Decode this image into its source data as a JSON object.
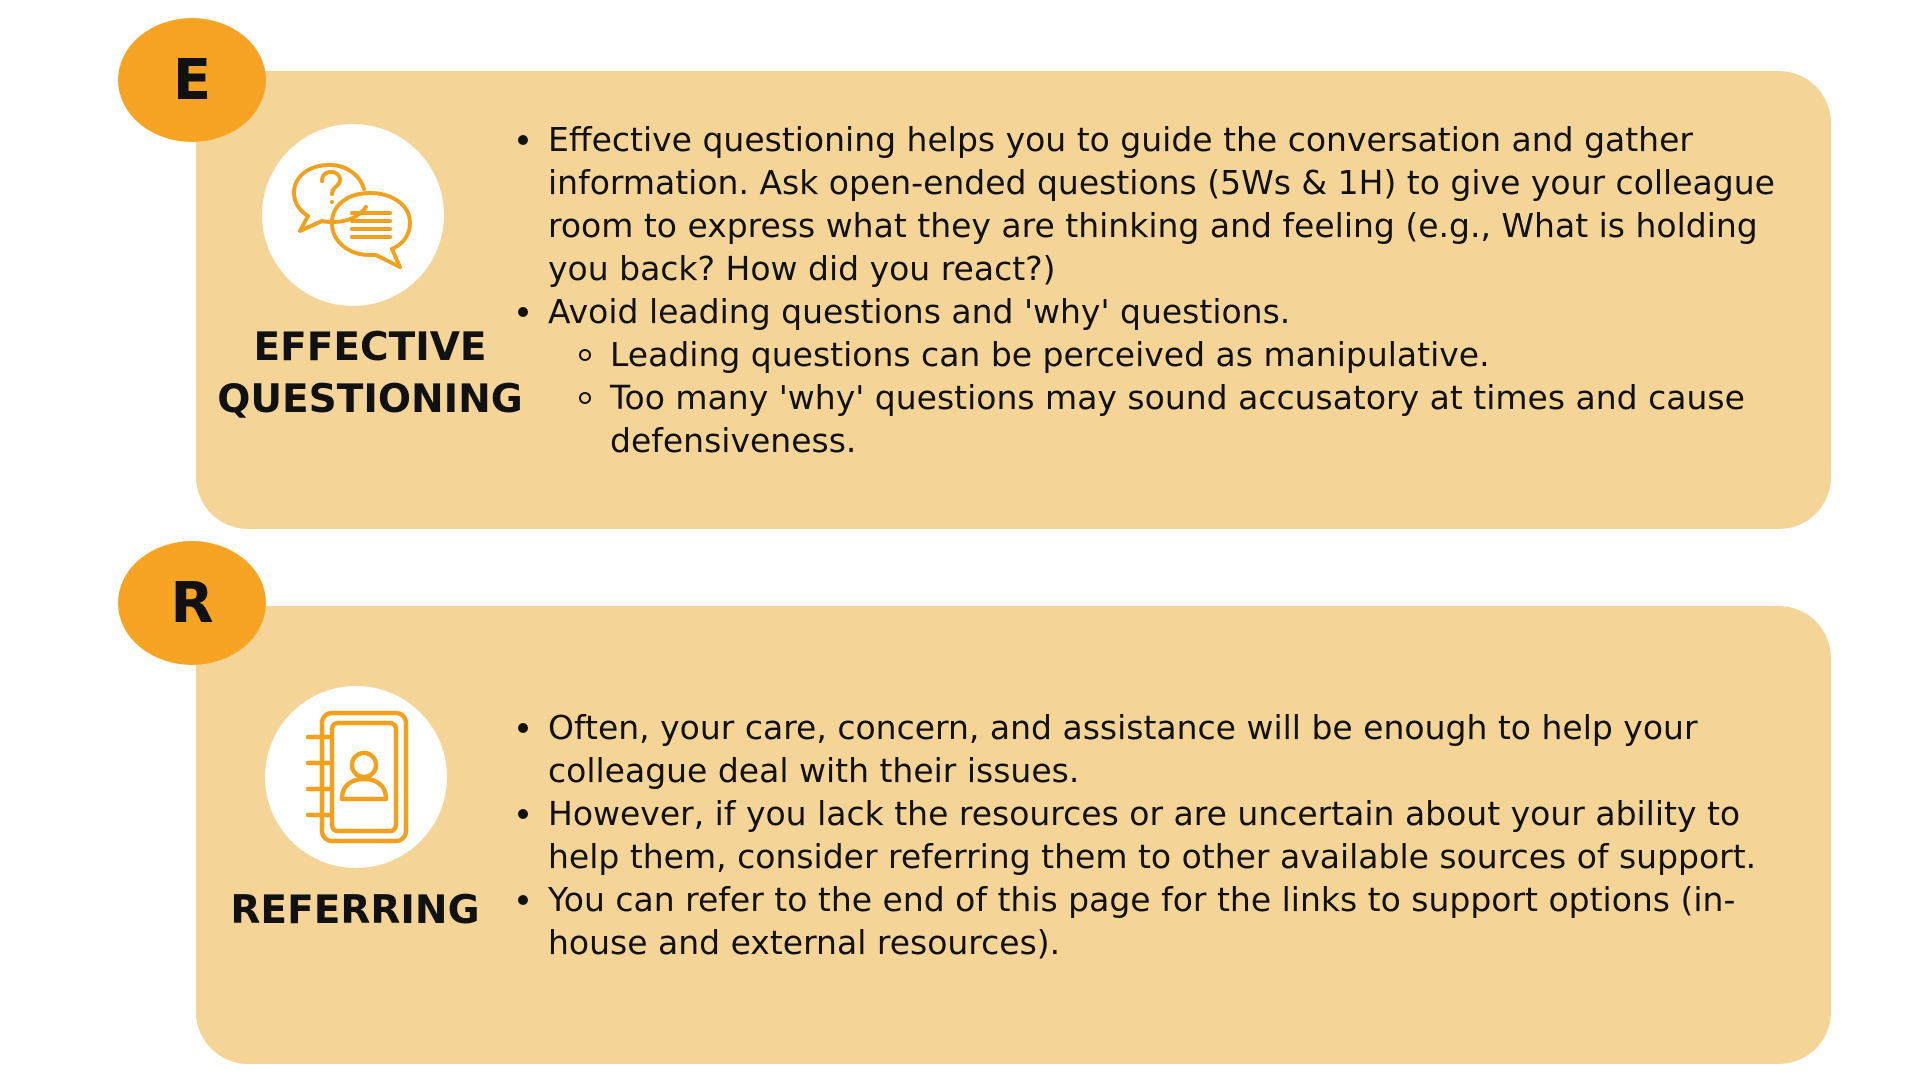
{
  "sections": [
    {
      "letter": "E",
      "title_line1": "EFFECTIVE",
      "title_line2": "QUESTIONING",
      "icon": "question-chat-bubbles-icon",
      "bullets": [
        "Effective questioning helps you to guide the conversation and gather information. Ask open-ended questions (5Ws & 1H) to give your colleague room to express what they are thinking and feeling (e.g., What is holding you back? How did you react?)",
        "Avoid leading questions and 'why' questions."
      ],
      "sub_bullets": [
        "Leading questions can be perceived as manipulative.",
        "Too many 'why' questions may sound accusatory at times and cause defensiveness."
      ]
    },
    {
      "letter": "R",
      "title": "REFERRING",
      "icon": "contact-book-icon",
      "bullets": [
        "Often, your care, concern, and assistance will be enough to help your colleague deal with their issues.",
        "However, if you lack the resources or are uncertain about your ability to help them, consider referring them to other available sources of support.",
        "You can refer to the end of this page for the links to support options (in-house and external resources)."
      ]
    }
  ],
  "colors": {
    "card": "#f5d597",
    "badge": "#f7a425",
    "icon_stroke": "#f2a11f"
  }
}
